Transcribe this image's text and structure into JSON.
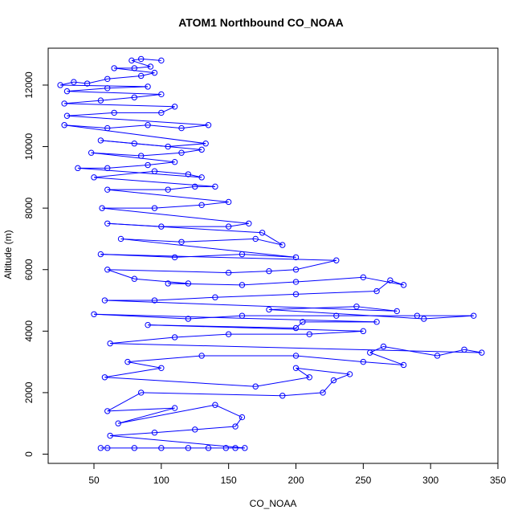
{
  "chart_data": {
    "type": "scatter",
    "title": "ATOM1 Northbound CO_NOAA",
    "xlabel": "CO_NOAA",
    "ylabel": "Altitude (m)",
    "xlim": [
      16,
      350
    ],
    "ylim": [
      -300,
      13200
    ],
    "x_ticks": [
      50,
      100,
      150,
      200,
      250,
      300,
      350
    ],
    "y_ticks": [
      0,
      2000,
      4000,
      6000,
      8000,
      10000,
      12000
    ],
    "grid": false,
    "legend": "none",
    "marker": "open-circle-with-lines",
    "color": "#0000ff",
    "series": [
      {
        "values": [
          {
            "x": 55,
            "y": 200
          },
          {
            "x": 60,
            "y": 200
          },
          {
            "x": 80,
            "y": 200
          },
          {
            "x": 100,
            "y": 200
          },
          {
            "x": 120,
            "y": 200
          },
          {
            "x": 135,
            "y": 200
          },
          {
            "x": 148,
            "y": 200
          },
          {
            "x": 155,
            "y": 200
          },
          {
            "x": 162,
            "y": 200
          },
          {
            "x": 62,
            "y": 600
          },
          {
            "x": 95,
            "y": 700
          },
          {
            "x": 125,
            "y": 800
          },
          {
            "x": 155,
            "y": 900
          },
          {
            "x": 160,
            "y": 1200
          },
          {
            "x": 140,
            "y": 1600
          },
          {
            "x": 68,
            "y": 1000
          },
          {
            "x": 110,
            "y": 1500
          },
          {
            "x": 60,
            "y": 1400
          },
          {
            "x": 85,
            "y": 2000
          },
          {
            "x": 190,
            "y": 1900
          },
          {
            "x": 220,
            "y": 2000
          },
          {
            "x": 228,
            "y": 2400
          },
          {
            "x": 240,
            "y": 2600
          },
          {
            "x": 200,
            "y": 2800
          },
          {
            "x": 210,
            "y": 2500
          },
          {
            "x": 170,
            "y": 2200
          },
          {
            "x": 58,
            "y": 2500
          },
          {
            "x": 100,
            "y": 2800
          },
          {
            "x": 75,
            "y": 3000
          },
          {
            "x": 130,
            "y": 3200
          },
          {
            "x": 200,
            "y": 3200
          },
          {
            "x": 250,
            "y": 3000
          },
          {
            "x": 280,
            "y": 2900
          },
          {
            "x": 255,
            "y": 3300
          },
          {
            "x": 265,
            "y": 3500
          },
          {
            "x": 305,
            "y": 3200
          },
          {
            "x": 325,
            "y": 3400
          },
          {
            "x": 338,
            "y": 3300
          },
          {
            "x": 62,
            "y": 3600
          },
          {
            "x": 110,
            "y": 3800
          },
          {
            "x": 150,
            "y": 3900
          },
          {
            "x": 210,
            "y": 3900
          },
          {
            "x": 250,
            "y": 4000
          },
          {
            "x": 90,
            "y": 4200
          },
          {
            "x": 200,
            "y": 4100
          },
          {
            "x": 205,
            "y": 4300
          },
          {
            "x": 260,
            "y": 4300
          },
          {
            "x": 50,
            "y": 4550
          },
          {
            "x": 120,
            "y": 4400
          },
          {
            "x": 160,
            "y": 4500
          },
          {
            "x": 230,
            "y": 4500
          },
          {
            "x": 290,
            "y": 4500
          },
          {
            "x": 332,
            "y": 4500
          },
          {
            "x": 295,
            "y": 4400
          },
          {
            "x": 180,
            "y": 4700
          },
          {
            "x": 245,
            "y": 4800
          },
          {
            "x": 275,
            "y": 4650
          },
          {
            "x": 58,
            "y": 5000
          },
          {
            "x": 95,
            "y": 5000
          },
          {
            "x": 140,
            "y": 5100
          },
          {
            "x": 200,
            "y": 5200
          },
          {
            "x": 260,
            "y": 5300
          },
          {
            "x": 270,
            "y": 5650
          },
          {
            "x": 280,
            "y": 5500
          },
          {
            "x": 250,
            "y": 5750
          },
          {
            "x": 200,
            "y": 5600
          },
          {
            "x": 160,
            "y": 5500
          },
          {
            "x": 105,
            "y": 5550
          },
          {
            "x": 120,
            "y": 5550
          },
          {
            "x": 80,
            "y": 5700
          },
          {
            "x": 60,
            "y": 6000
          },
          {
            "x": 150,
            "y": 5900
          },
          {
            "x": 180,
            "y": 5950
          },
          {
            "x": 200,
            "y": 6000
          },
          {
            "x": 230,
            "y": 6300
          },
          {
            "x": 55,
            "y": 6500
          },
          {
            "x": 110,
            "y": 6400
          },
          {
            "x": 160,
            "y": 6500
          },
          {
            "x": 200,
            "y": 6400
          },
          {
            "x": 70,
            "y": 7000
          },
          {
            "x": 115,
            "y": 6900
          },
          {
            "x": 170,
            "y": 7000
          },
          {
            "x": 190,
            "y": 6800
          },
          {
            "x": 175,
            "y": 7200
          },
          {
            "x": 60,
            "y": 7500
          },
          {
            "x": 100,
            "y": 7400
          },
          {
            "x": 150,
            "y": 7400
          },
          {
            "x": 165,
            "y": 7500
          },
          {
            "x": 56,
            "y": 8000
          },
          {
            "x": 95,
            "y": 8000
          },
          {
            "x": 130,
            "y": 8100
          },
          {
            "x": 150,
            "y": 8200
          },
          {
            "x": 60,
            "y": 8600
          },
          {
            "x": 105,
            "y": 8600
          },
          {
            "x": 125,
            "y": 8700
          },
          {
            "x": 140,
            "y": 8700
          },
          {
            "x": 50,
            "y": 9000
          },
          {
            "x": 95,
            "y": 9200
          },
          {
            "x": 120,
            "y": 9100
          },
          {
            "x": 130,
            "y": 9000
          },
          {
            "x": 38,
            "y": 9300
          },
          {
            "x": 60,
            "y": 9300
          },
          {
            "x": 90,
            "y": 9400
          },
          {
            "x": 110,
            "y": 9500
          },
          {
            "x": 48,
            "y": 9800
          },
          {
            "x": 85,
            "y": 9700
          },
          {
            "x": 115,
            "y": 9800
          },
          {
            "x": 130,
            "y": 9900
          },
          {
            "x": 55,
            "y": 10200
          },
          {
            "x": 80,
            "y": 10100
          },
          {
            "x": 105,
            "y": 10000
          },
          {
            "x": 133,
            "y": 10100
          },
          {
            "x": 28,
            "y": 10700
          },
          {
            "x": 60,
            "y": 10600
          },
          {
            "x": 90,
            "y": 10700
          },
          {
            "x": 115,
            "y": 10600
          },
          {
            "x": 135,
            "y": 10700
          },
          {
            "x": 30,
            "y": 11000
          },
          {
            "x": 65,
            "y": 11100
          },
          {
            "x": 100,
            "y": 11100
          },
          {
            "x": 110,
            "y": 11300
          },
          {
            "x": 28,
            "y": 11400
          },
          {
            "x": 55,
            "y": 11500
          },
          {
            "x": 80,
            "y": 11600
          },
          {
            "x": 100,
            "y": 11700
          },
          {
            "x": 30,
            "y": 11800
          },
          {
            "x": 60,
            "y": 11900
          },
          {
            "x": 90,
            "y": 11950
          },
          {
            "x": 25,
            "y": 12000
          },
          {
            "x": 35,
            "y": 12100
          },
          {
            "x": 45,
            "y": 12050
          },
          {
            "x": 60,
            "y": 12200
          },
          {
            "x": 85,
            "y": 12300
          },
          {
            "x": 95,
            "y": 12400
          },
          {
            "x": 65,
            "y": 12550
          },
          {
            "x": 80,
            "y": 12550
          },
          {
            "x": 92,
            "y": 12600
          },
          {
            "x": 78,
            "y": 12800
          },
          {
            "x": 85,
            "y": 12850
          },
          {
            "x": 100,
            "y": 12800
          }
        ]
      }
    ]
  }
}
